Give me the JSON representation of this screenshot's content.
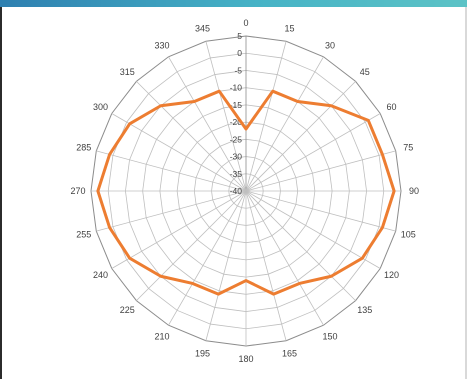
{
  "chart_data": {
    "type": "radar",
    "title": "",
    "angular_ticks": [
      "0",
      "15",
      "30",
      "45",
      "60",
      "75",
      "90",
      "105",
      "120",
      "135",
      "150",
      "165",
      "180",
      "195",
      "210",
      "225",
      "240",
      "255",
      "270",
      "285",
      "300",
      "315",
      "330",
      "345"
    ],
    "radial_ticks": [
      "5",
      "0",
      "-5",
      "-10",
      "-15",
      "-20",
      "-25",
      "-30",
      "-35",
      "-40"
    ],
    "rlim": [
      -40,
      5
    ],
    "grid": true,
    "legend": "none",
    "series": [
      {
        "color": "#ed7d31",
        "angles": [
          0,
          15,
          30,
          45,
          60,
          75,
          90,
          105,
          120,
          135,
          150,
          165,
          180,
          195,
          210,
          225,
          240,
          255,
          270,
          285,
          300,
          315,
          330,
          345
        ],
        "values": [
          -22,
          -10,
          -10,
          -5,
          1,
          1,
          3,
          1,
          -1,
          -5,
          -9,
          -9,
          -14,
          -9,
          -9,
          -5,
          -1,
          1,
          3,
          1,
          -1,
          -5,
          -10,
          -10
        ]
      }
    ]
  }
}
